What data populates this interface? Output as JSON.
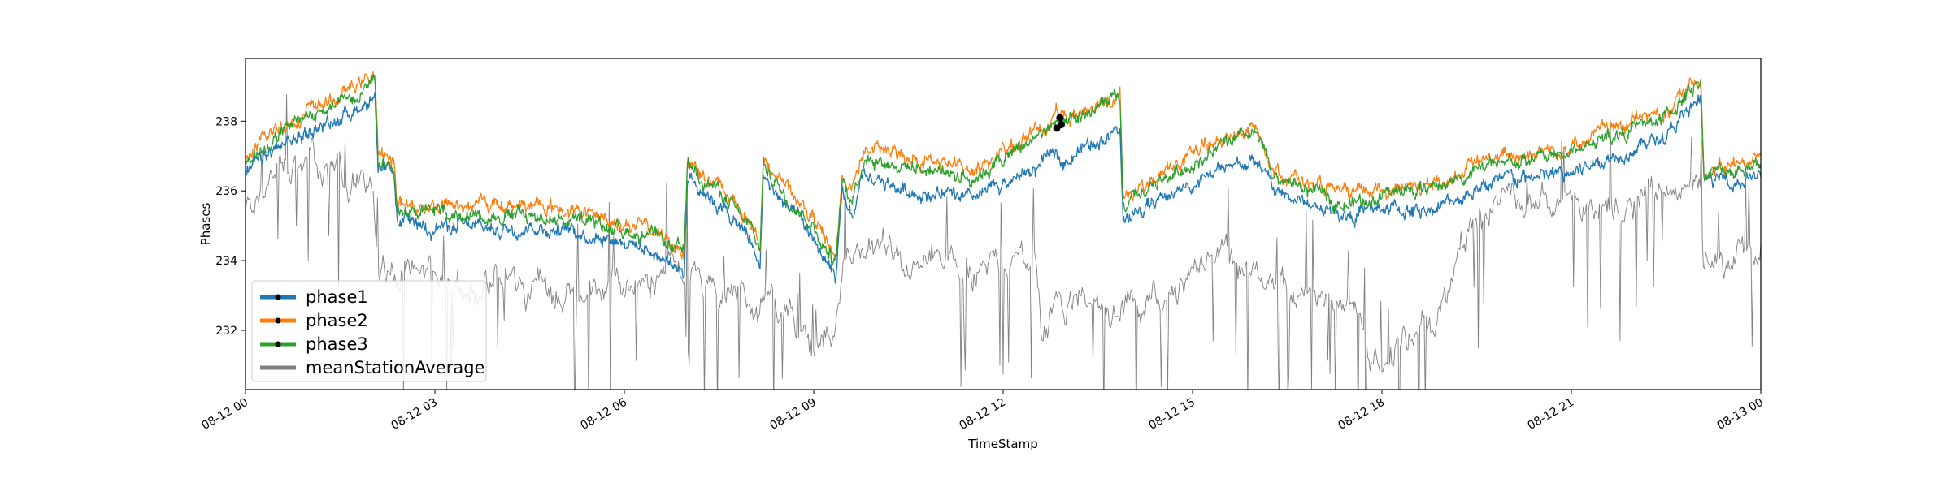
{
  "chart_data": {
    "type": "line",
    "xlabel": "TimeStamp",
    "ylabel": "Phases",
    "x_tick_labels": [
      "08-12 00",
      "08-12 03",
      "08-12 06",
      "08-12 09",
      "08-12 12",
      "08-12 15",
      "08-12 18",
      "08-12 21",
      "08-13 00"
    ],
    "y_ticks": [
      232,
      234,
      236,
      238
    ],
    "xlim_hours": [
      0,
      24
    ],
    "ylim": [
      230.3,
      239.8
    ],
    "legend_position": "lower-left",
    "series": [
      {
        "name": "phase1",
        "color": "#1f77b4",
        "marker": "dot",
        "keypoints": [
          [
            0,
            236.5
          ],
          [
            0.5,
            237.2
          ],
          [
            1.0,
            237.7
          ],
          [
            1.5,
            238.1
          ],
          [
            2.05,
            238.7
          ],
          [
            2.1,
            236.4
          ],
          [
            2.35,
            236.6
          ],
          [
            2.4,
            235.1
          ],
          [
            3.0,
            235.0
          ],
          [
            4.0,
            234.9
          ],
          [
            4.5,
            235.0
          ],
          [
            5.0,
            234.9
          ],
          [
            6.0,
            234.6
          ],
          [
            6.5,
            234.2
          ],
          [
            6.95,
            233.7
          ],
          [
            7.0,
            236.5
          ],
          [
            7.5,
            235.6
          ],
          [
            8.0,
            234.6
          ],
          [
            8.15,
            233.8
          ],
          [
            8.2,
            236.4
          ],
          [
            8.5,
            235.7
          ],
          [
            9.0,
            234.6
          ],
          [
            9.35,
            233.4
          ],
          [
            9.45,
            235.8
          ],
          [
            9.6,
            235.2
          ],
          [
            9.8,
            236.4
          ],
          [
            10.5,
            236.0
          ],
          [
            11.0,
            235.9
          ],
          [
            11.5,
            235.7
          ],
          [
            12.0,
            236.2
          ],
          [
            12.5,
            236.6
          ],
          [
            12.85,
            237.1
          ],
          [
            13.0,
            236.9
          ],
          [
            13.5,
            237.5
          ],
          [
            13.85,
            237.7
          ],
          [
            13.9,
            235.1
          ],
          [
            14.5,
            235.8
          ],
          [
            15.0,
            236.2
          ],
          [
            15.5,
            236.6
          ],
          [
            16.0,
            236.9
          ],
          [
            16.3,
            236.0
          ],
          [
            17.0,
            235.5
          ],
          [
            17.5,
            235.3
          ],
          [
            18.0,
            235.5
          ],
          [
            18.5,
            235.4
          ],
          [
            19.0,
            235.6
          ],
          [
            19.5,
            236.1
          ],
          [
            20.0,
            236.3
          ],
          [
            21.0,
            236.5
          ],
          [
            21.5,
            236.9
          ],
          [
            22.5,
            237.6
          ],
          [
            23.05,
            238.6
          ],
          [
            23.1,
            236.3
          ],
          [
            23.5,
            236.3
          ],
          [
            24.0,
            236.4
          ]
        ]
      },
      {
        "name": "phase2",
        "color": "#ff7f0e",
        "marker": "dot",
        "keypoints": [
          [
            0,
            236.9
          ],
          [
            0.5,
            237.8
          ],
          [
            1.0,
            238.3
          ],
          [
            1.5,
            238.7
          ],
          [
            2.05,
            239.4
          ],
          [
            2.1,
            236.9
          ],
          [
            2.35,
            237.0
          ],
          [
            2.4,
            235.6
          ],
          [
            3.0,
            235.6
          ],
          [
            4.0,
            235.6
          ],
          [
            4.5,
            235.6
          ],
          [
            5.0,
            235.5
          ],
          [
            6.0,
            235.1
          ],
          [
            6.5,
            234.8
          ],
          [
            6.95,
            234.3
          ],
          [
            7.0,
            236.9
          ],
          [
            7.5,
            236.1
          ],
          [
            8.0,
            235.2
          ],
          [
            8.15,
            234.5
          ],
          [
            8.2,
            236.9
          ],
          [
            8.5,
            236.2
          ],
          [
            9.0,
            235.2
          ],
          [
            9.35,
            234.1
          ],
          [
            9.45,
            236.4
          ],
          [
            9.6,
            236.0
          ],
          [
            9.8,
            237.2
          ],
          [
            10.5,
            237.0
          ],
          [
            11.0,
            236.8
          ],
          [
            11.5,
            236.6
          ],
          [
            12.0,
            237.1
          ],
          [
            12.5,
            237.7
          ],
          [
            12.85,
            238.2
          ],
          [
            13.0,
            238.0
          ],
          [
            13.5,
            238.6
          ],
          [
            13.85,
            238.8
          ],
          [
            13.9,
            235.7
          ],
          [
            14.5,
            236.5
          ],
          [
            15.0,
            237.0
          ],
          [
            15.5,
            237.5
          ],
          [
            16.0,
            237.8
          ],
          [
            16.3,
            236.6
          ],
          [
            17.0,
            236.1
          ],
          [
            17.5,
            235.8
          ],
          [
            18.0,
            236.1
          ],
          [
            18.5,
            236.1
          ],
          [
            19.0,
            236.3
          ],
          [
            19.5,
            236.8
          ],
          [
            20.0,
            237.0
          ],
          [
            21.0,
            237.3
          ],
          [
            21.5,
            237.7
          ],
          [
            22.5,
            238.3
          ],
          [
            23.05,
            239.3
          ],
          [
            23.1,
            236.6
          ],
          [
            23.5,
            236.7
          ],
          [
            24.0,
            237.0
          ]
        ]
      },
      {
        "name": "phase3",
        "color": "#2ca02c",
        "marker": "dot",
        "keypoints": [
          [
            0,
            236.8
          ],
          [
            0.5,
            237.6
          ],
          [
            1.0,
            238.1
          ],
          [
            1.5,
            238.5
          ],
          [
            2.05,
            239.3
          ],
          [
            2.1,
            236.8
          ],
          [
            2.35,
            236.9
          ],
          [
            2.4,
            235.5
          ],
          [
            3.0,
            235.4
          ],
          [
            4.0,
            235.3
          ],
          [
            4.5,
            235.3
          ],
          [
            5.0,
            235.2
          ],
          [
            6.0,
            234.9
          ],
          [
            6.5,
            234.6
          ],
          [
            6.95,
            234.2
          ],
          [
            7.0,
            236.8
          ],
          [
            7.5,
            236.0
          ],
          [
            8.0,
            234.9
          ],
          [
            8.15,
            234.3
          ],
          [
            8.2,
            236.8
          ],
          [
            8.5,
            236.0
          ],
          [
            9.0,
            235.0
          ],
          [
            9.35,
            233.9
          ],
          [
            9.45,
            236.2
          ],
          [
            9.6,
            235.8
          ],
          [
            9.8,
            237.0
          ],
          [
            10.5,
            236.7
          ],
          [
            11.0,
            236.6
          ],
          [
            11.5,
            236.4
          ],
          [
            12.0,
            236.9
          ],
          [
            12.5,
            237.5
          ],
          [
            12.85,
            238.0
          ],
          [
            13.0,
            237.8
          ],
          [
            13.5,
            238.4
          ],
          [
            13.85,
            238.6
          ],
          [
            13.9,
            235.5
          ],
          [
            14.5,
            236.3
          ],
          [
            15.0,
            236.8
          ],
          [
            15.5,
            237.3
          ],
          [
            16.0,
            237.6
          ],
          [
            16.3,
            236.4
          ],
          [
            17.0,
            235.9
          ],
          [
            17.5,
            235.6
          ],
          [
            18.0,
            235.9
          ],
          [
            18.5,
            236.0
          ],
          [
            19.0,
            236.2
          ],
          [
            19.5,
            236.6
          ],
          [
            20.0,
            236.8
          ],
          [
            21.0,
            237.1
          ],
          [
            21.5,
            237.5
          ],
          [
            22.5,
            238.1
          ],
          [
            23.05,
            239.2
          ],
          [
            23.1,
            236.5
          ],
          [
            23.5,
            236.6
          ],
          [
            24.0,
            236.8
          ]
        ]
      },
      {
        "name": "meanStationAverage",
        "color": "#808080",
        "marker": "none",
        "keypoints": [
          [
            0,
            235.4
          ],
          [
            0.3,
            236.0
          ],
          [
            0.6,
            236.5
          ],
          [
            1.0,
            236.7
          ],
          [
            1.5,
            236.4
          ],
          [
            2.0,
            236.0
          ],
          [
            2.1,
            233.9
          ],
          [
            2.5,
            233.6
          ],
          [
            3.0,
            233.3
          ],
          [
            3.5,
            233.2
          ],
          [
            4.0,
            233.3
          ],
          [
            4.5,
            233.3
          ],
          [
            5.0,
            233.0
          ],
          [
            5.5,
            233.2
          ],
          [
            6.0,
            233.1
          ],
          [
            6.5,
            233.6
          ],
          [
            7.0,
            233.6
          ],
          [
            7.5,
            233.1
          ],
          [
            8.0,
            232.6
          ],
          [
            8.5,
            232.7
          ],
          [
            9.0,
            231.6
          ],
          [
            9.3,
            231.8
          ],
          [
            9.5,
            234.4
          ],
          [
            10.0,
            234.3
          ],
          [
            10.5,
            234.1
          ],
          [
            11.0,
            233.9
          ],
          [
            11.5,
            233.6
          ],
          [
            12.0,
            234.0
          ],
          [
            12.5,
            234.5
          ],
          [
            12.6,
            232.2
          ],
          [
            13.0,
            232.6
          ],
          [
            13.5,
            232.8
          ],
          [
            13.85,
            232.6
          ],
          [
            13.9,
            232.7
          ],
          [
            14.5,
            232.9
          ],
          [
            15.0,
            233.5
          ],
          [
            15.5,
            234.1
          ],
          [
            16.0,
            234.0
          ],
          [
            16.5,
            233.3
          ],
          [
            17.0,
            232.9
          ],
          [
            17.5,
            232.7
          ],
          [
            18.0,
            231.1
          ],
          [
            18.5,
            232.0
          ],
          [
            19.0,
            232.9
          ],
          [
            19.5,
            235.2
          ],
          [
            20.0,
            235.6
          ],
          [
            21.0,
            235.7
          ],
          [
            21.5,
            235.5
          ],
          [
            22.0,
            235.6
          ],
          [
            22.5,
            235.9
          ],
          [
            23.05,
            236.4
          ],
          [
            23.1,
            233.8
          ],
          [
            23.5,
            234.0
          ],
          [
            24.0,
            234.4
          ]
        ]
      }
    ],
    "annotations": [
      {
        "label": "highlighted points",
        "color": "#000000",
        "points": [
          [
            12.85,
            237.8
          ],
          [
            12.9,
            238.1
          ],
          [
            12.92,
            237.9
          ]
        ]
      }
    ]
  }
}
